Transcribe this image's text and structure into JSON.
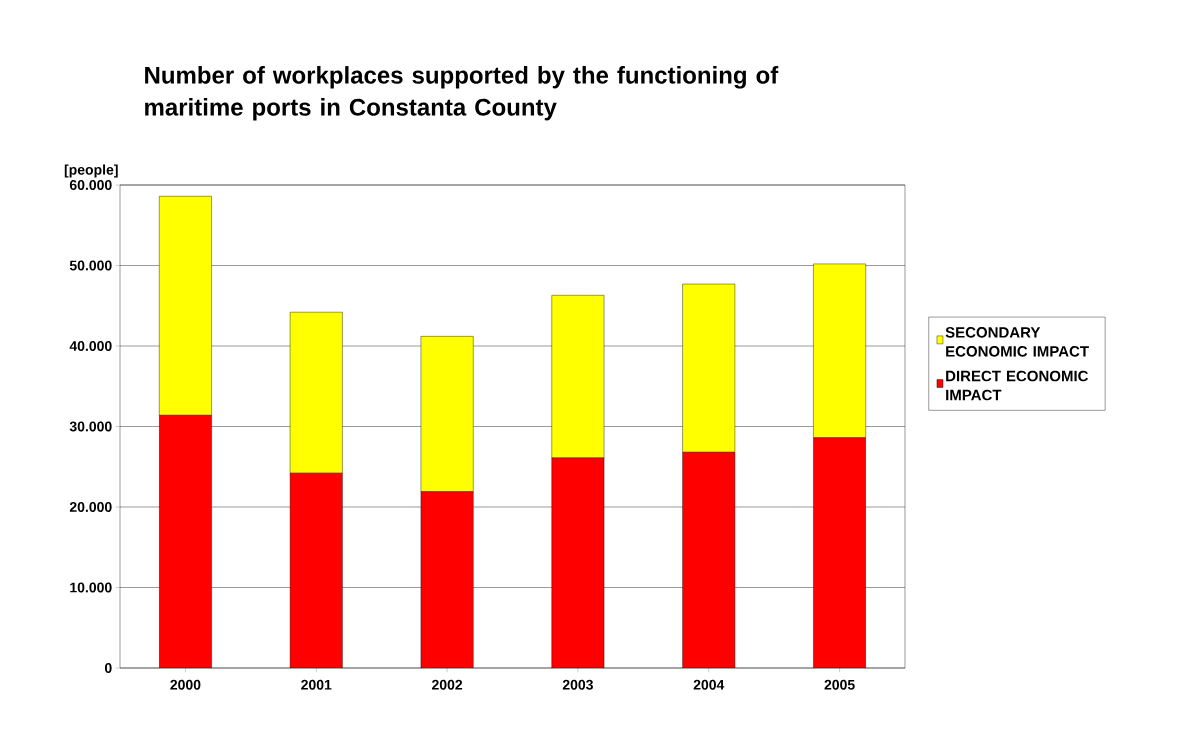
{
  "chart_data": {
    "type": "bar",
    "title": "Number of workplaces supported by the functioning of maritime ports in Constanta County",
    "ylabel": "[people]",
    "categories": [
      "2000",
      "2001",
      "2002",
      "2003",
      "2004",
      "2005"
    ],
    "stacked": true,
    "series": [
      {
        "name": "DIRECT ECONOMIC IMPACT",
        "color": "#ff0000",
        "values": [
          31400,
          24200,
          21900,
          26100,
          26800,
          28600
        ]
      },
      {
        "name": "SECONDARY ECONOMIC IMPACT",
        "color": "#ffff00",
        "values": [
          27200,
          20000,
          19300,
          20200,
          20900,
          21600
        ]
      }
    ],
    "ylim": [
      0,
      60000
    ],
    "yticks": [
      {
        "value": 0,
        "label": "0"
      },
      {
        "value": 10000,
        "label": "10.000"
      },
      {
        "value": 20000,
        "label": "20.000"
      },
      {
        "value": 30000,
        "label": "30.000"
      },
      {
        "value": 40000,
        "label": "40.000"
      },
      {
        "value": 50000,
        "label": "50.000"
      },
      {
        "value": 60000,
        "label": "60.000"
      }
    ],
    "grid": "y",
    "legend": "right"
  }
}
